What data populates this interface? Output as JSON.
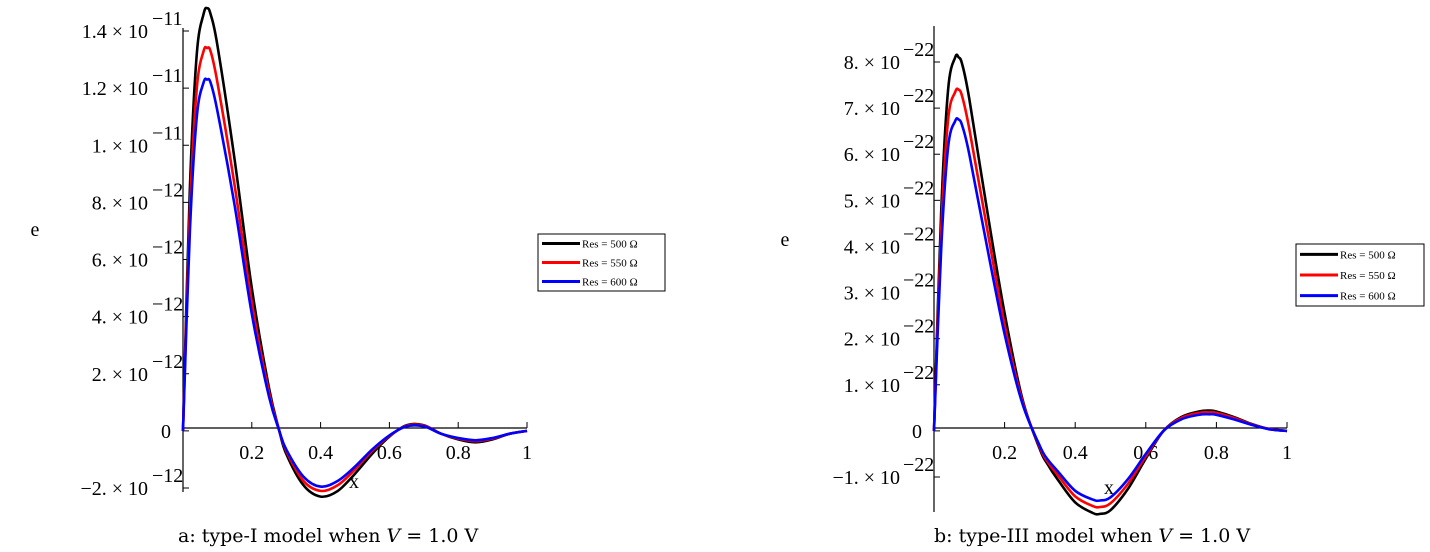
{
  "chart_data": [
    {
      "type": "line",
      "xlabel": "x",
      "ylabel": "e",
      "xlim": [
        0,
        1
      ],
      "ylim": [
        -2.4e-12,
        1.5e-11
      ],
      "x_ticks": [
        "0.2",
        "0.4",
        "0.6",
        "0.8",
        "1"
      ],
      "y_ticks": [
        {
          "value": 1.4e-11,
          "mantissa": "1.4 × 10",
          "exp": "−11"
        },
        {
          "value": 1.2e-11,
          "mantissa": "1.2 × 10",
          "exp": "−11"
        },
        {
          "value": 1e-11,
          "mantissa": "1. × 10",
          "exp": "−11"
        },
        {
          "value": 8e-12,
          "mantissa": "8. × 10",
          "exp": "−12"
        },
        {
          "value": 6e-12,
          "mantissa": "6. × 10",
          "exp": "−12"
        },
        {
          "value": 4e-12,
          "mantissa": "4. × 10",
          "exp": "−12"
        },
        {
          "value": 2e-12,
          "mantissa": "2. × 10",
          "exp": "−12"
        },
        {
          "value": 0,
          "mantissa": "0",
          "exp": ""
        },
        {
          "value": -2e-12,
          "mantissa": "−2. × 10",
          "exp": "−12"
        }
      ],
      "series": [
        {
          "name": "Res = 500 Ω",
          "color": "#000000",
          "x": [
            0,
            0.02,
            0.04,
            0.06,
            0.07,
            0.08,
            0.1,
            0.15,
            0.2,
            0.25,
            0.28,
            0.3,
            0.35,
            0.4,
            0.45,
            0.5,
            0.55,
            0.6,
            0.65,
            0.7,
            0.75,
            0.8,
            0.85,
            0.9,
            0.95,
            1.0
          ],
          "y": [
            0,
            8.5e-12,
            1.32e-11,
            1.46e-11,
            1.48e-11,
            1.46e-11,
            1.35e-11,
            9.5e-12,
            5e-12,
            1.5e-12,
            0,
            -8e-13,
            -1.9e-12,
            -2.3e-12,
            -2.1e-12,
            -1.5e-12,
            -8e-13,
            -2e-13,
            2e-13,
            2e-13,
            -1e-13,
            -3e-13,
            -4e-13,
            -3e-13,
            -1e-13,
            0
          ]
        },
        {
          "name": "Res = 550 Ω",
          "color": "#ff0000",
          "x": [
            0,
            0.02,
            0.04,
            0.06,
            0.07,
            0.08,
            0.1,
            0.15,
            0.2,
            0.25,
            0.28,
            0.3,
            0.35,
            0.4,
            0.45,
            0.5,
            0.55,
            0.6,
            0.65,
            0.7,
            0.75,
            0.8,
            0.85,
            0.9,
            0.95,
            1.0
          ],
          "y": [
            0,
            7.7e-12,
            1.2e-11,
            1.33e-11,
            1.34e-11,
            1.33e-11,
            1.22e-11,
            8.6e-12,
            4.5e-12,
            1.35e-12,
            0,
            -7e-13,
            -1.75e-12,
            -2.1e-12,
            -1.9e-12,
            -1.35e-12,
            -7e-13,
            -1.8e-13,
            1.8e-13,
            1.8e-13,
            -1e-13,
            -2.7e-13,
            -3.6e-13,
            -2.7e-13,
            -1e-13,
            0
          ]
        },
        {
          "name": "Res = 600 Ω",
          "color": "#0000ff",
          "x": [
            0,
            0.02,
            0.04,
            0.06,
            0.07,
            0.08,
            0.1,
            0.15,
            0.2,
            0.25,
            0.28,
            0.3,
            0.35,
            0.4,
            0.45,
            0.5,
            0.55,
            0.6,
            0.65,
            0.7,
            0.75,
            0.8,
            0.85,
            0.9,
            0.95,
            1.0
          ],
          "y": [
            0,
            7e-12,
            1.1e-11,
            1.22e-11,
            1.23e-11,
            1.22e-11,
            1.12e-11,
            7.9e-12,
            4.1e-12,
            1.2e-12,
            0,
            -6.5e-13,
            -1.6e-12,
            -1.95e-12,
            -1.75e-12,
            -1.25e-12,
            -6.5e-13,
            -1.6e-13,
            1.6e-13,
            1.6e-13,
            -1e-13,
            -2.5e-13,
            -3.3e-13,
            -2.5e-13,
            -1e-13,
            0
          ]
        }
      ],
      "legend": "right",
      "caption": {
        "prefix": "a: type-I model when ",
        "var": "V",
        "rest": " = 1.0 V"
      }
    },
    {
      "type": "line",
      "xlabel": "x",
      "ylabel": "e",
      "xlim": [
        0,
        1
      ],
      "ylim": [
        -1.8e-22,
        8.3e-22
      ],
      "x_ticks": [
        "0.2",
        "0.4",
        "0.6",
        "0.8",
        "1"
      ],
      "y_ticks": [
        {
          "value": 8e-22,
          "mantissa": "8. × 10",
          "exp": "−22"
        },
        {
          "value": 7e-22,
          "mantissa": "7. × 10",
          "exp": "−22"
        },
        {
          "value": 6e-22,
          "mantissa": "6. × 10",
          "exp": "−22"
        },
        {
          "value": 5e-22,
          "mantissa": "5. × 10",
          "exp": "−22"
        },
        {
          "value": 4e-22,
          "mantissa": "4. × 10",
          "exp": "−22"
        },
        {
          "value": 3e-22,
          "mantissa": "3. × 10",
          "exp": "−22"
        },
        {
          "value": 2e-22,
          "mantissa": "2. × 10",
          "exp": "−22"
        },
        {
          "value": 1e-22,
          "mantissa": "1. × 10",
          "exp": "−22"
        },
        {
          "value": 0,
          "mantissa": "0",
          "exp": ""
        },
        {
          "value": -1e-22,
          "mantissa": "−1. × 10",
          "exp": "−22"
        }
      ],
      "series": [
        {
          "name": "Res = 500 Ω",
          "color": "#000000",
          "x": [
            0,
            0.02,
            0.04,
            0.06,
            0.07,
            0.08,
            0.1,
            0.15,
            0.2,
            0.25,
            0.3,
            0.32,
            0.35,
            0.4,
            0.45,
            0.47,
            0.5,
            0.55,
            0.6,
            0.65,
            0.7,
            0.75,
            0.78,
            0.8,
            0.85,
            0.9,
            0.95,
            1.0
          ],
          "y": [
            0,
            4.7e-22,
            7.4e-22,
            8.1e-22,
            8.1e-22,
            7.95e-22,
            7.2e-22,
            4.8e-22,
            2.55e-22,
            7e-23,
            -4e-23,
            -7e-23,
            -1.05e-22,
            -1.55e-22,
            -1.78e-22,
            -1.8e-22,
            -1.72e-22,
            -1.25e-22,
            -6e-23,
            0,
            3e-23,
            4.2e-23,
            4.4e-23,
            4.2e-23,
            3e-23,
            1.5e-23,
            4e-24,
            0
          ]
        },
        {
          "name": "Res = 550 Ω",
          "color": "#ff0000",
          "x": [
            0,
            0.02,
            0.04,
            0.06,
            0.07,
            0.08,
            0.1,
            0.15,
            0.2,
            0.25,
            0.3,
            0.32,
            0.35,
            0.4,
            0.45,
            0.47,
            0.5,
            0.55,
            0.6,
            0.65,
            0.7,
            0.75,
            0.78,
            0.8,
            0.85,
            0.9,
            0.95,
            1.0
          ],
          "y": [
            0,
            4.3e-22,
            6.75e-22,
            7.35e-22,
            7.4e-22,
            7.25e-22,
            6.55e-22,
            4.4e-22,
            2.3e-22,
            6.5e-23,
            -3.6e-23,
            -6.5e-23,
            -9.5e-23,
            -1.42e-22,
            -1.63e-22,
            -1.65e-22,
            -1.57e-22,
            -1.14e-22,
            -5.5e-23,
            0,
            2.8e-23,
            3.9e-23,
            4e-23,
            3.9e-23,
            2.8e-23,
            1.4e-23,
            4e-24,
            0
          ]
        },
        {
          "name": "Res = 600 Ω",
          "color": "#0000ff",
          "x": [
            0,
            0.02,
            0.04,
            0.06,
            0.07,
            0.08,
            0.1,
            0.15,
            0.2,
            0.25,
            0.3,
            0.32,
            0.35,
            0.4,
            0.45,
            0.47,
            0.5,
            0.55,
            0.6,
            0.65,
            0.7,
            0.75,
            0.78,
            0.8,
            0.85,
            0.9,
            0.95,
            1.0
          ],
          "y": [
            0,
            3.9e-22,
            6.15e-22,
            6.72e-22,
            6.75e-22,
            6.62e-22,
            6e-22,
            4e-22,
            2.1e-22,
            6e-23,
            -3.3e-23,
            -6e-23,
            -8.7e-23,
            -1.3e-22,
            -1.49e-22,
            -1.51e-22,
            -1.44e-22,
            -1.04e-22,
            -5e-23,
            0,
            2.5e-23,
            3.5e-23,
            3.6e-23,
            3.5e-23,
            2.5e-23,
            1.3e-23,
            3.5e-24,
            0
          ]
        }
      ],
      "legend": "right",
      "caption": {
        "prefix": "b: type-III model when ",
        "var": "V",
        "rest": " = 1.0 V"
      }
    }
  ]
}
